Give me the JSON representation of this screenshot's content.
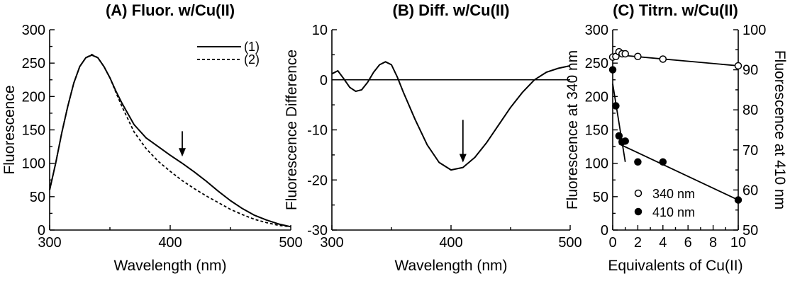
{
  "chart_data": [
    {
      "panel": "A",
      "type": "line",
      "title": "(A)  Fluor.  w/Cu(II)",
      "xlabel": "Wavelength (nm)",
      "ylabel": "Fluorescence",
      "xlim": [
        300,
        500
      ],
      "ylim": [
        0,
        300
      ],
      "xticks": [
        300,
        400,
        500
      ],
      "yticks": [
        0,
        50,
        100,
        150,
        200,
        250,
        300
      ],
      "legend_position": "top-right",
      "arrow_at": {
        "x": 410,
        "y_from": 148,
        "y_to": 110
      },
      "series": [
        {
          "name": "(1)",
          "style": "solid",
          "x": [
            300,
            305,
            310,
            315,
            320,
            325,
            330,
            335,
            340,
            345,
            350,
            355,
            360,
            370,
            380,
            390,
            400,
            410,
            420,
            430,
            440,
            450,
            460,
            470,
            480,
            490,
            500
          ],
          "y": [
            60,
            100,
            145,
            185,
            220,
            245,
            258,
            262,
            258,
            245,
            228,
            208,
            190,
            158,
            138,
            125,
            112,
            100,
            87,
            73,
            58,
            44,
            32,
            22,
            15,
            9,
            5
          ]
        },
        {
          "name": "(2)",
          "style": "dashed",
          "x": [
            300,
            305,
            310,
            315,
            320,
            325,
            330,
            335,
            340,
            345,
            350,
            355,
            360,
            370,
            380,
            390,
            400,
            410,
            420,
            430,
            440,
            450,
            460,
            470,
            480,
            490,
            500
          ],
          "y": [
            60,
            100,
            145,
            185,
            220,
            245,
            258,
            263,
            258,
            245,
            228,
            206,
            185,
            147,
            122,
            103,
            88,
            74,
            62,
            51,
            41,
            31,
            23,
            16,
            11,
            7,
            5
          ]
        }
      ]
    },
    {
      "panel": "B",
      "type": "line",
      "title": "(B)  Diff.  w/Cu(II)",
      "xlabel": "Wavelength (nm)",
      "ylabel": "Fluorescence Difference",
      "xlim": [
        300,
        500
      ],
      "ylim": [
        -30,
        10
      ],
      "xticks": [
        300,
        400,
        500
      ],
      "yticks": [
        -30,
        -20,
        -10,
        0,
        10
      ],
      "zero_line": true,
      "arrow_at": {
        "x": 410,
        "y_from": -8,
        "y_to": -16.5
      },
      "series": [
        {
          "name": "",
          "style": "solid",
          "x": [
            300,
            305,
            310,
            315,
            320,
            325,
            330,
            335,
            340,
            345,
            350,
            355,
            360,
            370,
            380,
            390,
            400,
            410,
            420,
            430,
            440,
            450,
            460,
            470,
            480,
            490,
            500
          ],
          "y": [
            1.2,
            1.8,
            0.2,
            -1.5,
            -2.3,
            -2.0,
            -0.5,
            1.5,
            3.0,
            3.6,
            3.0,
            0.5,
            -2.5,
            -8.0,
            -13.0,
            -16.5,
            -18.0,
            -17.5,
            -15.5,
            -12.5,
            -9.0,
            -5.5,
            -2.5,
            0.0,
            1.5,
            2.3,
            2.8
          ]
        }
      ]
    },
    {
      "panel": "C",
      "type": "scatter",
      "title": "(C)  Titrn.  w/Cu(II)",
      "xlabel": "Equivalents of Cu(II)",
      "ylabel": "Fluorescence at 340 nm",
      "y2label": "Fluorescence at 410 nm",
      "xlim": [
        0,
        10
      ],
      "ylim": [
        0,
        300
      ],
      "y2lim": [
        50,
        100
      ],
      "xticks": [
        0,
        2,
        4,
        6,
        8,
        10
      ],
      "yticks": [
        0,
        50,
        100,
        150,
        200,
        250,
        300
      ],
      "y2ticks": [
        50,
        60,
        70,
        80,
        90,
        100
      ],
      "legend_position": "bottom-left",
      "series": [
        {
          "name": "340 nm",
          "marker": "open-circle",
          "axis": "left",
          "x": [
            0,
            0.25,
            0.5,
            0.75,
            1.0,
            2.0,
            4.0,
            10.0
          ],
          "y": [
            259,
            260,
            267,
            264,
            264,
            260,
            256,
            246
          ],
          "fit": [
            [
              0,
              263
            ],
            [
              10,
              246
            ]
          ]
        },
        {
          "name": "410 nm",
          "marker": "filled-circle",
          "axis": "right",
          "x": [
            0,
            0.25,
            0.5,
            0.75,
            1.0,
            2.0,
            4.0,
            10.0
          ],
          "y": [
            90.0,
            81.0,
            73.5,
            72.0,
            72.2,
            67.0,
            67.0,
            57.5
          ],
          "fit": [
            [
              [
                0,
                86.5
              ],
              [
                1.0,
                67.0
              ]
            ],
            [
              [
                0.5,
                71.5
              ],
              [
                10,
                57.5
              ]
            ]
          ]
        }
      ]
    }
  ]
}
